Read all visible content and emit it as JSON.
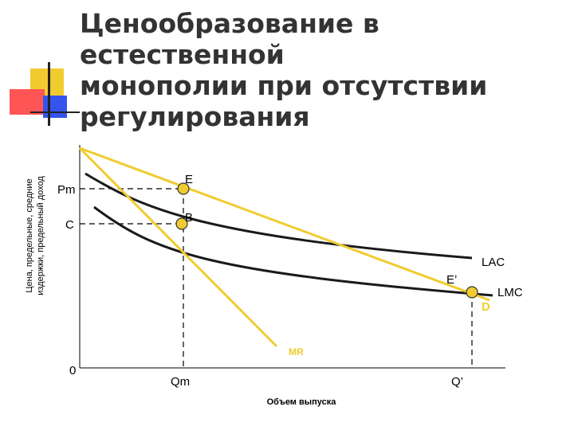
{
  "title": "Ценообразование в естественной\nмонополии при отсутствии\nрегулирования",
  "axes": {
    "y_label_line1": "Цена, предельные, средние",
    "y_label_line2": "издержки, предельный доход",
    "x_label": "Объем выпуска",
    "origin": "0"
  },
  "price_labels": {
    "pm": "Pm",
    "c": "C"
  },
  "quantity_labels": {
    "qm": "Qm",
    "q_prime": "Q’"
  },
  "points": {
    "e": "E",
    "b": "B",
    "e_prime": "E’"
  },
  "curves": {
    "lac": "LAC",
    "lmc": "LMC",
    "demand": "D",
    "mr": "MR"
  },
  "colors": {
    "accent_yellow": "#f0cc30",
    "accent_red": "#ff5555",
    "accent_blue": "#3355ee",
    "curve_dark": "#1a1a1a",
    "title_text": "#333333"
  }
}
